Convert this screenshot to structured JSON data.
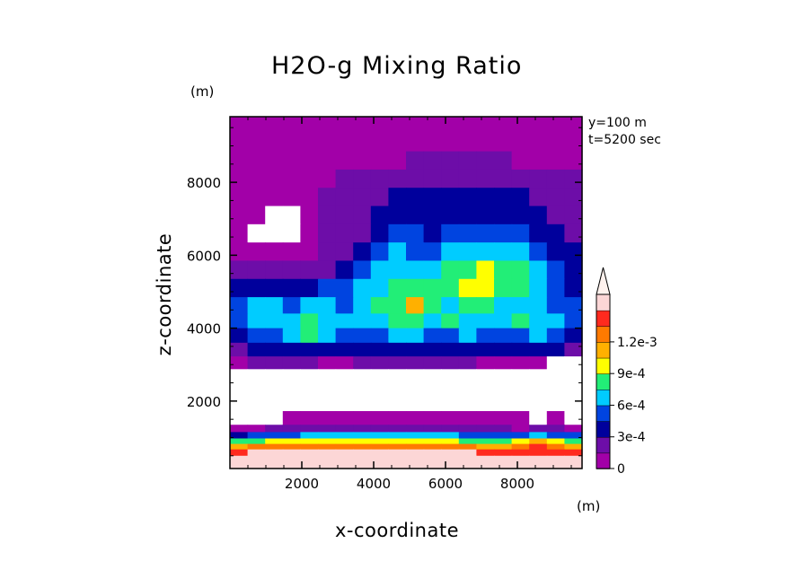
{
  "chart_data": {
    "type": "heatmap",
    "title": "H2O-g Mixing Ratio",
    "xlabel": "x-coordinate",
    "ylabel": "z-coordinate",
    "x_unit": "(m)",
    "y_unit": "(m)",
    "annotations": [
      "y=100 m",
      "t=5200 sec"
    ],
    "xlim": [
      0,
      9800
    ],
    "ylim": [
      150,
      9800
    ],
    "x_ticks": [
      2000,
      4000,
      6000,
      8000
    ],
    "y_ticks": [
      2000,
      4000,
      6000,
      8000
    ],
    "colorbar": {
      "levels": [
        0,
        0.00015,
        0.0003,
        0.00045,
        0.0006,
        0.00075,
        0.0009,
        0.00105,
        0.0012
      ],
      "tick_labels": [
        "0",
        "3e-4",
        "6e-4",
        "9e-4",
        "1.2e-3"
      ],
      "tick_values": [
        0,
        0.0003,
        0.0006,
        0.0009,
        0.0012
      ],
      "colors": [
        "#a200a8",
        "#6d0da8",
        "#00009c",
        "#0044e0",
        "#00ccff",
        "#22ee77",
        "#ffff00",
        "#ffb000",
        "#ff7a00",
        "#ff2a1e",
        "#fcd6d6"
      ],
      "extend": "max"
    },
    "grid": false,
    "value_rows": [
      {
        "z": 9600,
        "values": [
          0,
          0,
          0,
          0,
          0,
          0,
          0,
          0,
          0,
          0,
          0,
          0,
          0,
          0,
          0,
          0,
          0,
          0,
          0,
          0
        ]
      },
      {
        "z": 9100,
        "values": [
          0,
          0,
          0,
          0,
          0,
          0,
          0,
          0,
          0,
          0,
          0,
          0,
          0,
          0,
          0,
          0,
          0,
          0,
          0,
          0
        ]
      },
      {
        "z": 8600,
        "values": [
          0,
          0,
          0,
          0,
          0,
          0,
          0,
          0,
          0,
          0,
          1,
          1,
          1,
          1,
          1,
          1,
          0,
          0,
          0,
          0
        ]
      },
      {
        "z": 8100,
        "values": [
          0,
          0,
          0,
          0,
          0,
          0,
          1,
          1,
          1,
          1,
          1,
          1,
          1,
          1,
          1,
          1,
          1,
          1,
          1,
          1
        ]
      },
      {
        "z": 7600,
        "values": [
          0,
          0,
          0,
          0,
          0,
          1,
          1,
          1,
          1,
          2,
          2,
          2,
          2,
          2,
          2,
          2,
          2,
          1,
          1,
          1
        ]
      },
      {
        "z": 7100,
        "values": [
          0,
          0,
          -1,
          -1,
          0,
          1,
          1,
          1,
          2,
          2,
          2,
          2,
          2,
          2,
          2,
          2,
          2,
          2,
          1,
          1
        ]
      },
      {
        "z": 6600,
        "values": [
          0,
          -1,
          -1,
          -1,
          0,
          1,
          1,
          1,
          2,
          3,
          3,
          2,
          3,
          3,
          3,
          3,
          3,
          2,
          2,
          1
        ]
      },
      {
        "z": 6100,
        "values": [
          0,
          0,
          0,
          0,
          0,
          1,
          1,
          2,
          3,
          4,
          3,
          3,
          4,
          4,
          4,
          4,
          4,
          3,
          2,
          2
        ]
      },
      {
        "z": 5600,
        "values": [
          1,
          1,
          1,
          1,
          1,
          1,
          2,
          3,
          4,
          4,
          4,
          4,
          5,
          5,
          6,
          5,
          5,
          4,
          3,
          2
        ]
      },
      {
        "z": 5100,
        "values": [
          2,
          2,
          2,
          2,
          2,
          3,
          3,
          4,
          4,
          5,
          5,
          5,
          5,
          6,
          6,
          5,
          5,
          4,
          3,
          2
        ]
      },
      {
        "z": 4600,
        "values": [
          3,
          4,
          4,
          3,
          4,
          4,
          3,
          4,
          5,
          5,
          7,
          5,
          4,
          5,
          5,
          4,
          4,
          4,
          3,
          3
        ]
      },
      {
        "z": 4200,
        "values": [
          3,
          4,
          4,
          4,
          5,
          4,
          4,
          4,
          4,
          5,
          5,
          4,
          5,
          4,
          4,
          4,
          5,
          4,
          4,
          3
        ]
      },
      {
        "z": 3800,
        "values": [
          2,
          3,
          3,
          4,
          5,
          4,
          3,
          3,
          3,
          4,
          4,
          3,
          3,
          4,
          3,
          3,
          3,
          4,
          3,
          2
        ]
      },
      {
        "z": 3400,
        "values": [
          1,
          2,
          2,
          2,
          2,
          2,
          2,
          2,
          2,
          2,
          2,
          2,
          2,
          2,
          2,
          2,
          2,
          2,
          2,
          1
        ]
      },
      {
        "z": 3050,
        "values": [
          0,
          1,
          1,
          1,
          1,
          0,
          0,
          1,
          1,
          1,
          1,
          1,
          1,
          1,
          0,
          0,
          0,
          0,
          -1,
          -1
        ]
      },
      {
        "z": 2700,
        "values": [
          -1,
          -1,
          -1,
          -1,
          -1,
          -1,
          -1,
          -1,
          -1,
          -1,
          -1,
          -1,
          -1,
          -1,
          -1,
          -1,
          -1,
          -1,
          -1,
          -1
        ]
      },
      {
        "z": 2000,
        "values": [
          -1,
          -1,
          -1,
          -1,
          -1,
          -1,
          -1,
          -1,
          -1,
          -1,
          -1,
          -1,
          -1,
          -1,
          -1,
          -1,
          -1,
          -1,
          -1,
          -1
        ]
      },
      {
        "z": 1450,
        "values": [
          -1,
          -1,
          -1,
          0,
          0,
          0,
          0,
          0,
          0,
          0,
          0,
          0,
          0,
          0,
          0,
          0,
          0,
          -1,
          0,
          -1
        ]
      },
      {
        "z": 1250,
        "values": [
          0,
          0,
          1,
          1,
          1,
          1,
          1,
          1,
          1,
          1,
          1,
          1,
          1,
          1,
          1,
          1,
          0,
          1,
          1,
          0
        ]
      },
      {
        "z": 1050,
        "values": [
          2,
          3,
          3,
          3,
          4,
          4,
          4,
          4,
          4,
          4,
          4,
          4,
          4,
          3,
          3,
          3,
          3,
          4,
          3,
          3
        ]
      },
      {
        "z": 900,
        "values": [
          5,
          5,
          6,
          6,
          6,
          6,
          6,
          6,
          6,
          6,
          6,
          6,
          6,
          5,
          5,
          5,
          6,
          7,
          6,
          5
        ]
      },
      {
        "z": 750,
        "values": [
          7,
          8,
          8,
          8,
          8,
          8,
          8,
          8,
          8,
          8,
          8,
          8,
          8,
          8,
          7,
          7,
          8,
          9,
          8,
          7
        ]
      },
      {
        "z": 600,
        "values": [
          9,
          10,
          10,
          10,
          10,
          10,
          10,
          10,
          10,
          10,
          10,
          10,
          10,
          10,
          9,
          9,
          9,
          9,
          9,
          9
        ]
      },
      {
        "z": 400,
        "values": [
          10,
          10,
          10,
          10,
          10,
          10,
          10,
          10,
          10,
          10,
          10,
          10,
          10,
          10,
          10,
          10,
          10,
          10,
          10,
          10
        ]
      },
      {
        "z": 200,
        "values": [
          10,
          10,
          10,
          10,
          10,
          10,
          10,
          10,
          10,
          10,
          10,
          10,
          10,
          10,
          10,
          10,
          10,
          10,
          10,
          10
        ]
      }
    ]
  }
}
